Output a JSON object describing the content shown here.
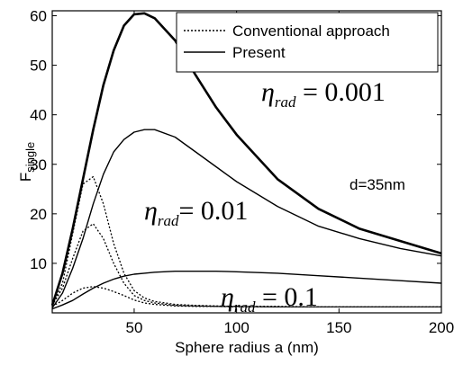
{
  "chart_data": {
    "type": "line",
    "x_label": [
      "Sphere radius a (nm)"
    ],
    "y_label": [
      "F",
      "single"
    ],
    "annotation": "d=35nm",
    "legend": [
      {
        "name": "Conventional approach",
        "dash": "2 2"
      },
      {
        "name": "Present",
        "dash": "none"
      }
    ],
    "x": [
      10,
      15,
      20,
      25,
      30,
      35,
      40,
      45,
      50,
      55,
      60,
      70,
      80,
      90,
      100,
      120,
      140,
      160,
      180,
      200
    ],
    "series": [
      {
        "legend": 1,
        "width": 2.6,
        "color": "#000000",
        "label": [
          "η",
          "rad",
          " = 0.001"
        ],
        "values": [
          1.5,
          8,
          17,
          27,
          37,
          46,
          53,
          58,
          60.3,
          60.5,
          59.5,
          55,
          48,
          41.5,
          36,
          27,
          21,
          17,
          14.5,
          12
        ]
      },
      {
        "legend": 1,
        "width": 1.4,
        "color": "#000000",
        "label": [
          "η",
          "rad",
          "= 0.01"
        ],
        "values": [
          1,
          4,
          9,
          15,
          22,
          28,
          32.5,
          35,
          36.5,
          37,
          37,
          35.5,
          32.5,
          29.5,
          26.5,
          21.5,
          17.5,
          15,
          13,
          11.5
        ]
      },
      {
        "legend": 1,
        "width": 1.4,
        "color": "#000000",
        "label": [
          "η",
          "rad",
          " = 0.1"
        ],
        "values": [
          0.8,
          1.6,
          2.5,
          3.8,
          5,
          6,
          6.8,
          7.4,
          7.8,
          8,
          8.2,
          8.4,
          8.4,
          8.4,
          8.3,
          8,
          7.5,
          7,
          6.5,
          6
        ]
      },
      {
        "legend": 0,
        "width": 1.3,
        "color": "#000000",
        "values": [
          1.5,
          6,
          16,
          26,
          27.5,
          22,
          14,
          8,
          4.5,
          3,
          2.3,
          1.7,
          1.5,
          1.4,
          1.3,
          1.3,
          1.2,
          1.2,
          1.2,
          1.2
        ]
      },
      {
        "legend": 0,
        "width": 1.3,
        "color": "#000000",
        "values": [
          1.5,
          5,
          11,
          16.5,
          18,
          15,
          10,
          6,
          3.5,
          2.5,
          2,
          1.5,
          1.4,
          1.3,
          1.3,
          1.2,
          1.2,
          1.2,
          1.2,
          1.2
        ]
      },
      {
        "legend": 0,
        "width": 1.3,
        "color": "#000000",
        "values": [
          1.3,
          2.5,
          4,
          5,
          5.3,
          5,
          4.3,
          3.5,
          2.6,
          2,
          1.7,
          1.4,
          1.3,
          1.3,
          1.2,
          1.2,
          1.2,
          1.2,
          1.2,
          1.2
        ]
      }
    ],
    "xlim": [
      10,
      200
    ],
    "ylim": [
      0,
      61
    ],
    "xticks": [
      50,
      100,
      150,
      200
    ],
    "yticks": [
      10,
      20,
      30,
      40,
      50,
      60
    ]
  }
}
